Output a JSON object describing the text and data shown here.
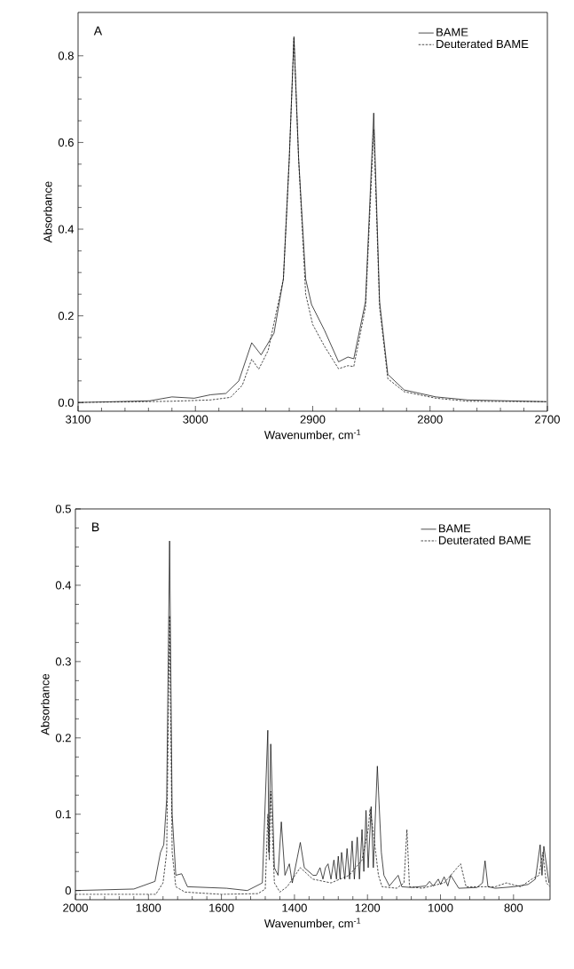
{
  "chart_data": [
    {
      "type": "line",
      "xlabel": "Wavenumber, cm$^{-1}$",
      "ylabel": "Absorbance",
      "annotations": [
        "A"
      ],
      "legend": "top right",
      "grid": false,
      "marker": "none",
      "xlim": [
        3100,
        2700
      ],
      "xticks": [
        3100,
        3000,
        2900,
        2800,
        2700
      ],
      "ylim": [
        -0.02,
        0.9
      ],
      "yticks": [
        {
          "value": 0,
          "label": "0.0"
        },
        0.2,
        0.4,
        0.6,
        0.8
      ],
      "series": [
        {
          "name": "BAME",
          "color": "#000000",
          "line_style": "solid",
          "x": [
            3100,
            3039,
            3020,
            3001,
            2987,
            2974,
            2963,
            2952,
            2944,
            2933,
            2925,
            2920,
            2916,
            2912,
            2906,
            2901,
            2890,
            2878,
            2870,
            2865,
            2855,
            2848,
            2843,
            2836,
            2822,
            2795,
            2768,
            2701
          ],
          "values": [
            0,
            0.004,
            0.013,
            0.01,
            0.018,
            0.021,
            0.05,
            0.138,
            0.11,
            0.16,
            0.285,
            0.563,
            0.844,
            0.563,
            0.285,
            0.226,
            0.167,
            0.094,
            0.105,
            0.101,
            0.233,
            0.668,
            0.233,
            0.065,
            0.029,
            0.013,
            0.006,
            0.002
          ]
        },
        {
          "name": "Deuterated BAME",
          "color": "#000000",
          "line_style": "dashed",
          "x": [
            3100,
            3020,
            2987,
            2970,
            2960,
            2952,
            2946,
            2938,
            2925,
            2920,
            2916,
            2912,
            2906,
            2900,
            2890,
            2878,
            2870,
            2865,
            2855,
            2848,
            2843,
            2836,
            2822,
            2795,
            2768,
            2701
          ],
          "values": [
            0,
            0.003,
            0.006,
            0.012,
            0.04,
            0.1,
            0.077,
            0.12,
            0.285,
            0.56,
            0.84,
            0.56,
            0.25,
            0.18,
            0.13,
            0.078,
            0.085,
            0.083,
            0.22,
            0.63,
            0.22,
            0.055,
            0.025,
            0.01,
            0.003,
            0.002
          ]
        }
      ]
    },
    {
      "type": "line",
      "xlabel": "Wavenumber, cm$^{-1}$",
      "ylabel": "Absorbance",
      "annotations": [
        "B"
      ],
      "legend": "top right",
      "grid": false,
      "marker": "none",
      "xlim": [
        2000,
        700
      ],
      "xticks": [
        2000,
        1800,
        1600,
        1400,
        1200,
        1000,
        800
      ],
      "ylim": [
        -0.012,
        0.5
      ],
      "yticks": [
        0,
        0.1,
        0.2,
        0.3,
        0.4,
        0.5
      ],
      "series": [
        {
          "name": "BAME",
          "color": "#000000",
          "line_style": "solid",
          "x": [
            2000,
            1840,
            1782,
            1767,
            1758,
            1750,
            1742,
            1735,
            1725,
            1709,
            1693,
            1586,
            1529,
            1488,
            1473,
            1470,
            1465,
            1455,
            1445,
            1436,
            1426,
            1414,
            1406,
            1384,
            1373,
            1349,
            1340,
            1330,
            1322,
            1315,
            1308,
            1300,
            1292,
            1285,
            1280,
            1275,
            1271,
            1262,
            1256,
            1249,
            1242,
            1236,
            1228,
            1222,
            1215,
            1210,
            1204,
            1198,
            1190,
            1184,
            1173,
            1162,
            1155,
            1140,
            1116,
            1106,
            1080,
            1060,
            1040,
            1030,
            1020,
            1006,
            1000,
            990,
            980,
            972,
            950,
            900,
            885,
            878,
            870,
            850,
            800,
            760,
            740,
            727,
            722,
            717,
            703
          ],
          "values": [
            0,
            0.002,
            0.012,
            0.05,
            0.06,
            0.12,
            0.458,
            0.1,
            0.02,
            0.022,
            0.005,
            0.003,
            0,
            0.01,
            0.21,
            0.05,
            0.192,
            0.03,
            0.02,
            0.09,
            0.02,
            0.035,
            0.01,
            0.063,
            0.03,
            0.02,
            0.02,
            0.03,
            0.015,
            0.03,
            0.035,
            0.015,
            0.04,
            0.015,
            0.045,
            0.015,
            0.05,
            0.015,
            0.055,
            0.015,
            0.065,
            0.015,
            0.07,
            0.015,
            0.08,
            0.025,
            0.105,
            0.03,
            0.11,
            0.03,
            0.163,
            0.05,
            0.02,
            0.006,
            0.02,
            0.005,
            0.004,
            0.005,
            0.006,
            0.012,
            0.006,
            0.015,
            0.008,
            0.018,
            0.006,
            0.02,
            0.003,
            0.004,
            0.01,
            0.039,
            0.005,
            0.003,
            0.005,
            0.008,
            0.015,
            0.06,
            0.02,
            0.058,
            0.01
          ]
        },
        {
          "name": "Deuterated BAME",
          "color": "#000000",
          "line_style": "dashed",
          "x": [
            2000,
            1780,
            1760,
            1750,
            1742,
            1735,
            1725,
            1700,
            1600,
            1500,
            1480,
            1473,
            1469,
            1465,
            1455,
            1440,
            1420,
            1384,
            1350,
            1300,
            1250,
            1215,
            1198,
            1193,
            1185,
            1170,
            1160,
            1120,
            1100,
            1092,
            1085,
            1050,
            990,
            945,
            930,
            850,
            820,
            780,
            750,
            730,
            720,
            710,
            700
          ],
          "values": [
            -0.005,
            -0.005,
            0.01,
            0.05,
            0.36,
            0.05,
            0.005,
            -0.002,
            -0.005,
            -0.004,
            0.002,
            0.1,
            0.04,
            0.13,
            0.01,
            -0.002,
            0.005,
            0.03,
            0.015,
            0.01,
            0.02,
            0.04,
            0.08,
            0.107,
            0.08,
            0.02,
            0.005,
            0.003,
            0.01,
            0.08,
            0.005,
            0.003,
            0.01,
            0.035,
            0.005,
            0.005,
            0.01,
            0.005,
            0.015,
            0.02,
            0.05,
            0.01,
            0.005
          ]
        }
      ]
    }
  ]
}
